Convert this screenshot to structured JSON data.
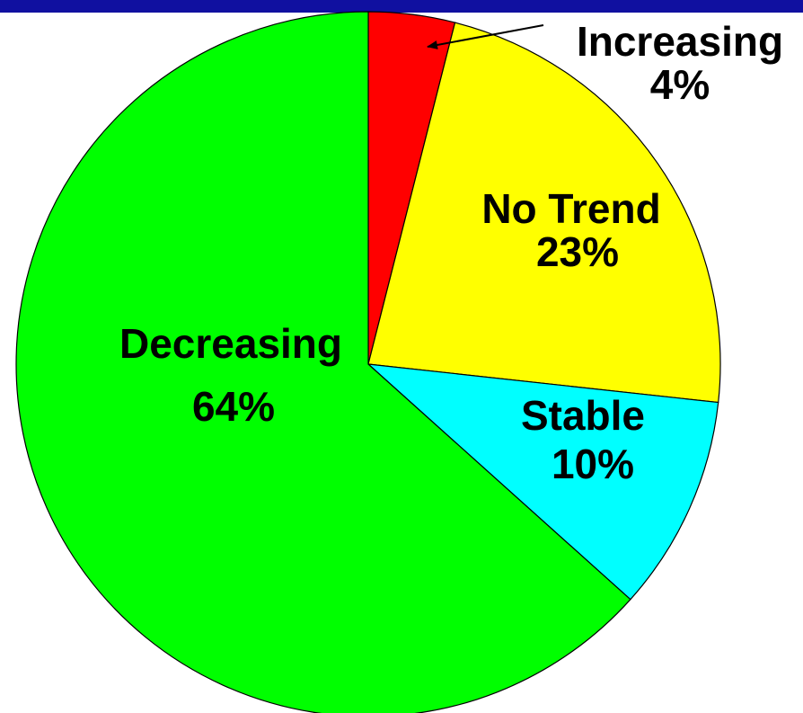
{
  "chart_data": {
    "type": "pie",
    "start_angle_deg": 0,
    "direction": "clockwise",
    "slices": [
      {
        "label": "Increasing",
        "percent_label": "4%",
        "value": 4,
        "color": "#FF0000"
      },
      {
        "label": "No Trend",
        "percent_label": "23%",
        "value": 23,
        "color": "#FFFF00"
      },
      {
        "label": "Stable",
        "percent_label": "10%",
        "value": 10,
        "color": "#00FFFF"
      },
      {
        "label": "Decreasing",
        "percent_label": "64%",
        "value": 64,
        "color": "#00FF00"
      }
    ]
  },
  "band_color": "#1010A0"
}
